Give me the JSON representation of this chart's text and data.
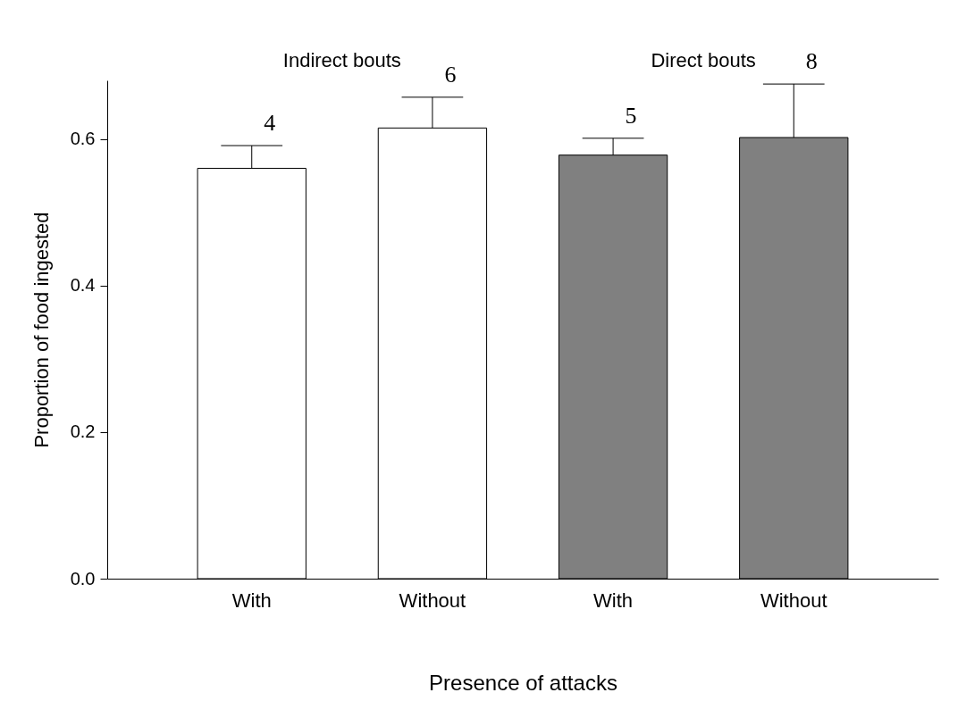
{
  "chart_data": {
    "type": "bar",
    "xlabel": "Presence of attacks",
    "ylabel": "Proportion of food ingested",
    "categories": [
      "With",
      "Without",
      "With",
      "Without"
    ],
    "values": [
      0.56,
      0.615,
      0.578,
      0.602
    ],
    "colors": [
      "#ffffff",
      "#ffffff",
      "#808080",
      "#808080"
    ],
    "errors": [
      [
        0.56,
        0.591
      ],
      [
        0.615,
        0.657
      ],
      [
        0.578,
        0.601
      ],
      [
        0.602,
        0.675
      ]
    ],
    "annotations": [
      "Indirect bouts",
      "Direct bouts",
      "4",
      "6",
      "5",
      "8"
    ],
    "ylim": [
      0,
      0.68
    ],
    "yticks": [
      {
        "value": 0,
        "label": "0.0"
      },
      {
        "value": 0.2,
        "label": "0.2"
      },
      {
        "value": 0.4,
        "label": "0.4"
      },
      {
        "value": 0.6,
        "label": "0.6"
      }
    ],
    "grid": false
  }
}
